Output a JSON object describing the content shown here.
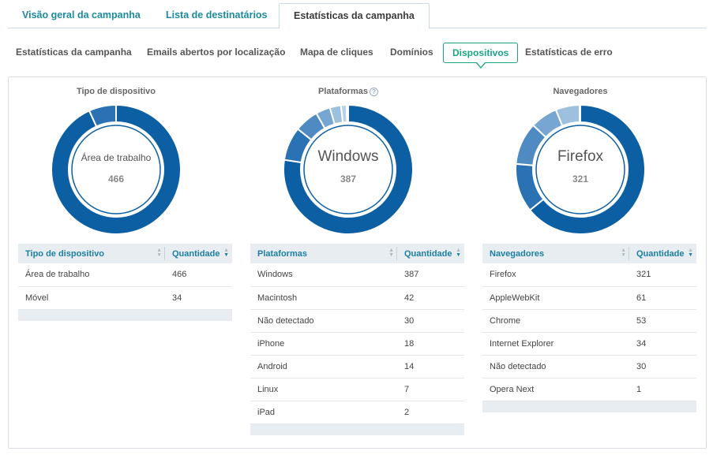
{
  "top_tabs": [
    {
      "label": "Visão geral da campanha"
    },
    {
      "label": "Lista de destinatários"
    },
    {
      "label": "Estatísticas da campanha"
    }
  ],
  "sub_tabs": [
    {
      "label": "Estatísticas da campanha"
    },
    {
      "label": "Emails abertos por localização"
    },
    {
      "label": "Mapa de cliques"
    },
    {
      "label": "Domínios"
    },
    {
      "label": "Dispositivos"
    },
    {
      "label": "Estatísticas de erro"
    }
  ],
  "colors": {
    "series": [
      "#0d5fa3",
      "#2a72b3",
      "#4f8bc2",
      "#76a6d1",
      "#9dc0df",
      "#b8d1e8"
    ],
    "accent": "#19a583",
    "link": "#1d8a9f"
  },
  "panels": [
    {
      "title": "Tipo de dispositivo",
      "center_label": "Área de trabalho",
      "center_value": "466",
      "header_name": "Tipo de dispositivo",
      "header_qty": "Quantidade",
      "rows": [
        {
          "name": "Área de trabalho",
          "qty": "466"
        },
        {
          "name": "Móvel",
          "qty": "34"
        }
      ]
    },
    {
      "title": "Plataformas",
      "help_icon": "help-icon",
      "center_label": "Windows",
      "center_value": "387",
      "header_name": "Plataformas",
      "header_qty": "Quantidade",
      "rows": [
        {
          "name": "Windows",
          "qty": "387"
        },
        {
          "name": "Macintosh",
          "qty": "42"
        },
        {
          "name": "Não detectado",
          "qty": "30"
        },
        {
          "name": "iPhone",
          "qty": "18"
        },
        {
          "name": "Android",
          "qty": "14"
        },
        {
          "name": "Linux",
          "qty": "7"
        },
        {
          "name": "iPad",
          "qty": "2"
        }
      ]
    },
    {
      "title": "Navegadores",
      "center_label": "Firefox",
      "center_value": "321",
      "header_name": "Navegadores",
      "header_qty": "Quantidade",
      "rows": [
        {
          "name": "Firefox",
          "qty": "321"
        },
        {
          "name": "AppleWebKit",
          "qty": "61"
        },
        {
          "name": "Chrome",
          "qty": "53"
        },
        {
          "name": "Internet Explorer",
          "qty": "34"
        },
        {
          "name": "Não detectado",
          "qty": "30"
        },
        {
          "name": "Opera Next",
          "qty": "1"
        }
      ]
    }
  ],
  "chart_data": [
    {
      "type": "pie",
      "categories": [
        "Área de trabalho",
        "Móvel"
      ],
      "values": [
        466,
        34
      ]
    },
    {
      "type": "pie",
      "categories": [
        "Windows",
        "Macintosh",
        "Não detectado",
        "iPhone",
        "Android",
        "Linux",
        "iPad"
      ],
      "values": [
        387,
        42,
        30,
        18,
        14,
        7,
        2
      ]
    },
    {
      "type": "pie",
      "categories": [
        "Firefox",
        "AppleWebKit",
        "Chrome",
        "Internet Explorer",
        "Não detectado",
        "Opera Next"
      ],
      "values": [
        321,
        61,
        53,
        34,
        30,
        1
      ]
    }
  ]
}
